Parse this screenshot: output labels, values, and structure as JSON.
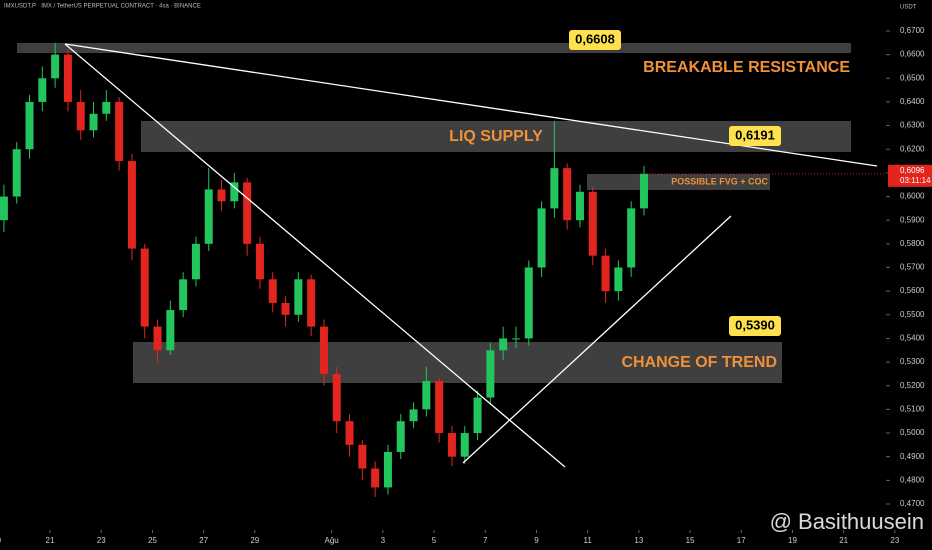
{
  "chart_data": {
    "type": "candlestick",
    "header": "IMXUSDT.P · IMX / TetherUS PERPETUAL CONTRACT · 4sa · BINANCE",
    "axis_unit": "USDT",
    "watermark": "@ Basithuusein",
    "up_color": "#22c55e",
    "down_color": "#e3251f",
    "grid": false,
    "xlim": [
      19.047,
      55.45
    ],
    "xticks": [
      {
        "value": 19,
        "label": "9"
      },
      21,
      23,
      25,
      27,
      29,
      {
        "value": 32,
        "label": "Ağu"
      },
      {
        "value": 34,
        "label": "3"
      },
      {
        "value": 36,
        "label": "5"
      },
      {
        "value": 38,
        "label": "7"
      },
      {
        "value": 40,
        "label": "9"
      },
      {
        "value": 42,
        "label": "11"
      },
      {
        "value": 44,
        "label": "13"
      },
      {
        "value": 46,
        "label": "15"
      },
      {
        "value": 48,
        "label": "17"
      },
      {
        "value": 50,
        "label": "19"
      },
      {
        "value": 52,
        "label": "21"
      },
      {
        "value": 54,
        "label": "23"
      }
    ],
    "ylim": [
      0.459,
      0.6831
    ],
    "yticks": [
      {
        "value": 0.47,
        "label": "0,4700"
      },
      {
        "value": 0.48,
        "label": "0,4800"
      },
      {
        "value": 0.49,
        "label": "0,4900"
      },
      {
        "value": 0.5,
        "label": "0,5000"
      },
      {
        "value": 0.51,
        "label": "0,5100"
      },
      {
        "value": 0.52,
        "label": "0,5200"
      },
      {
        "value": 0.53,
        "label": "0,5300"
      },
      {
        "value": 0.54,
        "label": "0,5400"
      },
      {
        "value": 0.55,
        "label": "0,5500"
      },
      {
        "value": 0.56,
        "label": "0,5600"
      },
      {
        "value": 0.57,
        "label": "0,5700"
      },
      {
        "value": 0.58,
        "label": "0,5800"
      },
      {
        "value": 0.59,
        "label": "0,5900"
      },
      {
        "value": 0.6,
        "label": "0,6000"
      },
      {
        "value": 0.61,
        "label": "0,6100"
      },
      {
        "value": 0.62,
        "label": "0,6200"
      },
      {
        "value": 0.63,
        "label": "0,6300"
      },
      {
        "value": 0.64,
        "label": "0,6400"
      },
      {
        "value": 0.65,
        "label": "0,6500"
      },
      {
        "value": 0.66,
        "label": "0,6600"
      },
      {
        "value": 0.67,
        "label": "0,6700"
      }
    ],
    "last_price": {
      "value": 0.6096,
      "label": "0,6096"
    },
    "countdown": "03:11:14",
    "annotations": {
      "resistance_price": "0,6608",
      "resistance_label": "BREAKABLE RESISTANCE",
      "supply_price": "0,6191",
      "supply_label": "LIQ SUPPLY",
      "fvg_label": "POSSIBLE FVG + COC",
      "trend_price": "0,5390",
      "trend_label": "CHANGE OF TREND"
    },
    "x": [
      19.2,
      19.7,
      20.2,
      20.7,
      21.2,
      21.7,
      22.2,
      22.7,
      23.2,
      23.7,
      24.2,
      24.7,
      25.2,
      25.7,
      26.2,
      26.7,
      27.2,
      27.7,
      28.2,
      28.7,
      29.2,
      29.7,
      30.2,
      30.7,
      31.2,
      31.7,
      32.2,
      32.7,
      33.2,
      33.7,
      34.2,
      34.7,
      35.2,
      35.7,
      36.2,
      36.7,
      37.2,
      37.7,
      38.2,
      38.7,
      39.2,
      39.7,
      40.2,
      40.7,
      41.2,
      41.7,
      42.2,
      42.7,
      43.2,
      43.7,
      44.2
    ],
    "open": [
      0.59,
      0.6,
      0.62,
      0.64,
      0.65,
      0.66,
      0.64,
      0.628,
      0.635,
      0.64,
      0.615,
      0.578,
      0.545,
      0.535,
      0.552,
      0.565,
      0.58,
      0.603,
      0.598,
      0.606,
      0.58,
      0.565,
      0.555,
      0.55,
      0.565,
      0.545,
      0.525,
      0.505,
      0.495,
      0.485,
      0.477,
      0.492,
      0.505,
      0.51,
      0.522,
      0.5,
      0.49,
      0.5,
      0.515,
      0.535,
      0.54,
      0.54,
      0.57,
      0.595,
      0.612,
      0.59,
      0.602,
      0.575,
      0.56,
      0.57,
      0.595
    ],
    "high": [
      0.605,
      0.623,
      0.643,
      0.655,
      0.665,
      0.662,
      0.645,
      0.64,
      0.645,
      0.642,
      0.618,
      0.58,
      0.548,
      0.556,
      0.568,
      0.583,
      0.612,
      0.607,
      0.61,
      0.608,
      0.583,
      0.568,
      0.558,
      0.568,
      0.567,
      0.548,
      0.528,
      0.508,
      0.497,
      0.488,
      0.495,
      0.508,
      0.513,
      0.528,
      0.523,
      0.503,
      0.503,
      0.518,
      0.538,
      0.545,
      0.545,
      0.573,
      0.598,
      0.632,
      0.614,
      0.605,
      0.604,
      0.578,
      0.573,
      0.598,
      0.613
    ],
    "low": [
      0.585,
      0.597,
      0.616,
      0.636,
      0.646,
      0.636,
      0.624,
      0.625,
      0.632,
      0.611,
      0.573,
      0.54,
      0.53,
      0.533,
      0.549,
      0.562,
      0.577,
      0.594,
      0.595,
      0.575,
      0.561,
      0.551,
      0.545,
      0.547,
      0.541,
      0.52,
      0.5,
      0.49,
      0.48,
      0.473,
      0.474,
      0.489,
      0.502,
      0.507,
      0.496,
      0.486,
      0.487,
      0.497,
      0.512,
      0.531,
      0.536,
      0.537,
      0.566,
      0.591,
      0.586,
      0.587,
      0.571,
      0.555,
      0.556,
      0.566,
      0.592
    ],
    "close": [
      0.6,
      0.62,
      0.64,
      0.65,
      0.66,
      0.64,
      0.628,
      0.635,
      0.64,
      0.615,
      0.578,
      0.545,
      0.535,
      0.552,
      0.565,
      0.58,
      0.603,
      0.598,
      0.606,
      0.58,
      0.565,
      0.555,
      0.55,
      0.565,
      0.545,
      0.525,
      0.505,
      0.495,
      0.485,
      0.477,
      0.492,
      0.505,
      0.51,
      0.522,
      0.5,
      0.49,
      0.5,
      0.515,
      0.535,
      0.54,
      0.54,
      0.57,
      0.595,
      0.612,
      0.59,
      0.602,
      0.575,
      0.56,
      0.57,
      0.595,
      0.6096
    ]
  }
}
